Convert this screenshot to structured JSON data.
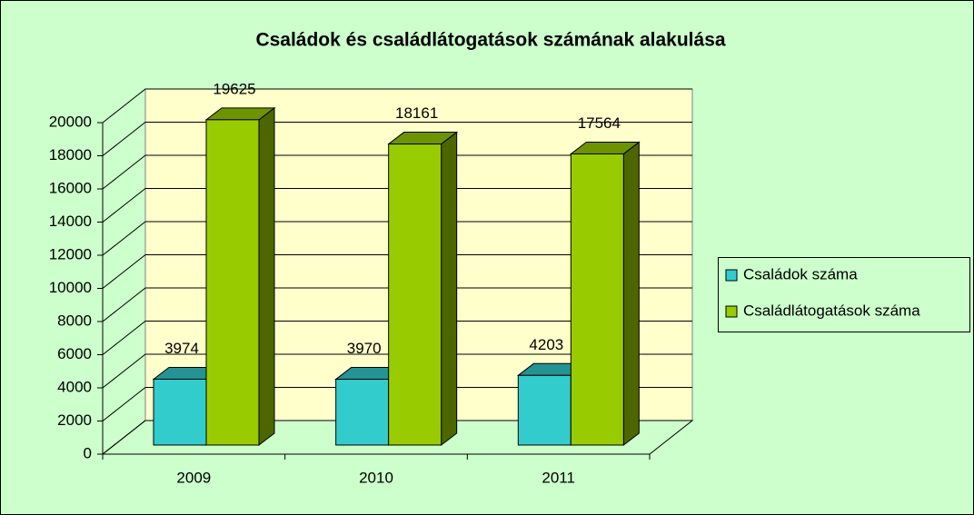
{
  "chart_data": {
    "type": "bar",
    "title": "Családok és családlátogatások számának alakulása",
    "categories": [
      "2009",
      "2010",
      "2011"
    ],
    "series": [
      {
        "name": "Családok száma",
        "color": "#33cccc",
        "values": [
          3974,
          3970,
          4203
        ]
      },
      {
        "name": "Családlátogatások száma",
        "color": "#99cc00",
        "values": [
          19625,
          18161,
          17564
        ]
      }
    ],
    "ylim": [
      0,
      20000
    ],
    "yticks": [
      0,
      2000,
      4000,
      6000,
      8000,
      10000,
      12000,
      14000,
      16000,
      18000,
      20000
    ],
    "grid": true,
    "legend": "right",
    "three_d": true
  }
}
